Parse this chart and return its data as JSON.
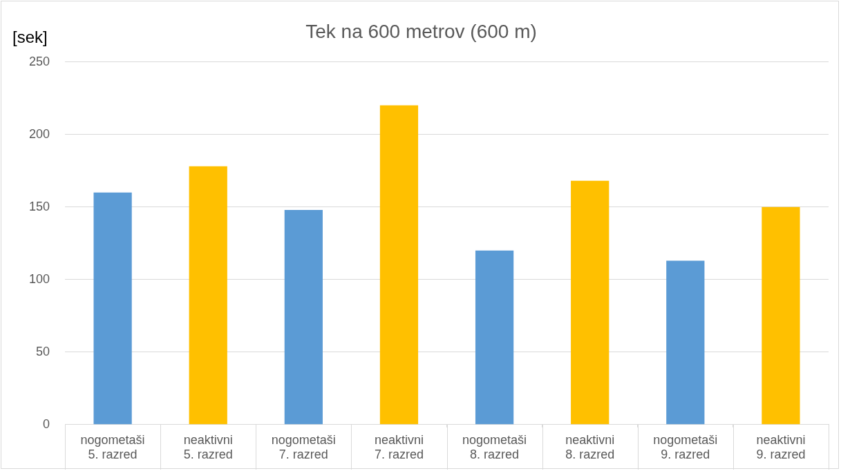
{
  "chart_data": {
    "type": "bar",
    "title": "Tek na 600 metrov (600 m)",
    "ylabel": "[sek]",
    "categories": [
      "nogometaši\n5. razred",
      "neaktivni\n5. razred",
      "nogometaši\n7. razred",
      "neaktivni\n7. razred",
      "nogometaši\n8. razred",
      "neaktivni\n8. razred",
      "nogometaši\n9. razred",
      "neaktivni\n9. razred"
    ],
    "values": [
      160,
      178,
      148,
      220,
      120,
      168,
      113,
      150
    ],
    "colors": [
      "#5b9bd5",
      "#ffc000",
      "#5b9bd5",
      "#ffc000",
      "#5b9bd5",
      "#ffc000",
      "#5b9bd5",
      "#ffc000"
    ],
    "ylim": [
      0,
      250
    ],
    "yticks": [
      0,
      50,
      100,
      150,
      200,
      250
    ],
    "grid": "y",
    "legend": false
  }
}
